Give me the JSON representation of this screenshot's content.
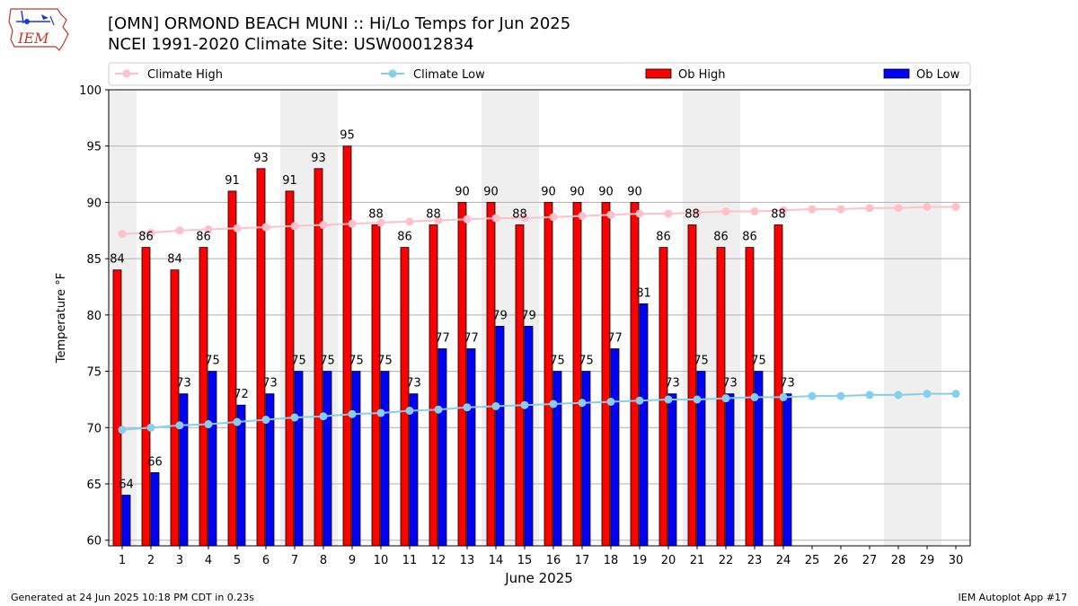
{
  "logo": {
    "text": "IEM"
  },
  "header": {
    "title_line1": "[OMN] ORMOND BEACH MUNI :: Hi/Lo Temps for Jun 2025",
    "title_line2": "NCEI 1991-2020 Climate Site: USW00012834"
  },
  "footer": {
    "left": "Generated at 24 Jun 2025 10:18 PM CDT in 0.23s",
    "right": "IEM Autoplot App #17"
  },
  "chart_data": {
    "type": "bar",
    "title": "[OMN] ORMOND BEACH MUNI :: Hi/Lo Temps for Jun 2025",
    "subtitle": "NCEI 1991-2020 Climate Site: USW00012834",
    "xlabel": "June 2025",
    "ylabel": "Temperature °F",
    "ylim": [
      59.5,
      100
    ],
    "yticks": [
      60,
      65,
      70,
      75,
      80,
      85,
      90,
      95,
      100
    ],
    "grid": true,
    "legend_placement": "top",
    "weekend_shading_days": [
      1,
      7,
      8,
      14,
      15,
      21,
      22,
      28,
      29
    ],
    "days": [
      1,
      2,
      3,
      4,
      5,
      6,
      7,
      8,
      9,
      10,
      11,
      12,
      13,
      14,
      15,
      16,
      17,
      18,
      19,
      20,
      21,
      22,
      23,
      24,
      25,
      26,
      27,
      28,
      29,
      30
    ],
    "series": [
      {
        "name": "Climate High",
        "kind": "line",
        "color": "#ffc0cb",
        "values": [
          87.2,
          87.3,
          87.5,
          87.6,
          87.7,
          87.8,
          87.9,
          88.0,
          88.1,
          88.2,
          88.3,
          88.4,
          88.5,
          88.6,
          88.6,
          88.7,
          88.8,
          88.9,
          89.0,
          89.0,
          89.1,
          89.2,
          89.2,
          89.3,
          89.4,
          89.4,
          89.5,
          89.5,
          89.6,
          89.6
        ]
      },
      {
        "name": "Climate Low",
        "kind": "line",
        "color": "#87ceeb",
        "values": [
          69.8,
          70.0,
          70.2,
          70.3,
          70.5,
          70.7,
          70.9,
          71.0,
          71.2,
          71.3,
          71.5,
          71.6,
          71.8,
          71.9,
          72.0,
          72.1,
          72.2,
          72.3,
          72.4,
          72.5,
          72.5,
          72.6,
          72.7,
          72.7,
          72.8,
          72.8,
          72.9,
          72.9,
          73.0,
          73.0
        ]
      },
      {
        "name": "Ob High",
        "kind": "bar",
        "color": "#ff0000",
        "values": [
          84,
          86,
          84,
          86,
          91,
          93,
          91,
          93,
          95,
          88,
          86,
          88,
          90,
          90,
          88,
          90,
          90,
          90,
          90,
          86,
          88,
          86,
          86,
          88
        ]
      },
      {
        "name": "Ob Low",
        "kind": "bar",
        "color": "#0000ff",
        "values": [
          64,
          66,
          73,
          75,
          72,
          73,
          75,
          75,
          75,
          75,
          73,
          77,
          77,
          79,
          79,
          75,
          75,
          77,
          81,
          73,
          75,
          73,
          75,
          73
        ]
      }
    ]
  }
}
